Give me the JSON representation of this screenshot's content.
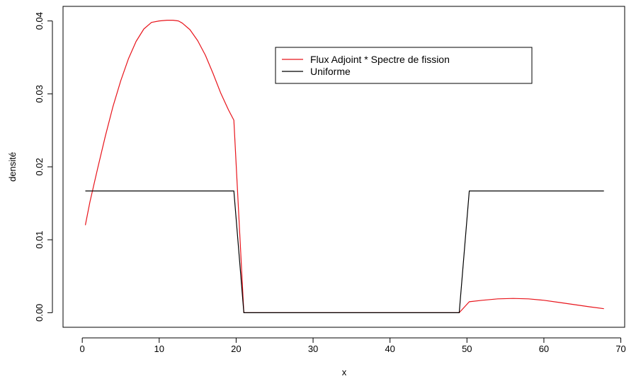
{
  "chart_data": {
    "type": "line",
    "title": "",
    "xlabel": "x",
    "ylabel": "densité",
    "xlim": [
      -2.5,
      70.5
    ],
    "ylim": [
      -0.002,
      0.042
    ],
    "xticks": [
      0,
      10,
      20,
      30,
      40,
      50,
      60,
      70
    ],
    "yticks": [
      0.0,
      0.01,
      0.02,
      0.03,
      0.04
    ],
    "ytick_labels": [
      "0.00",
      "0.01",
      "0.02",
      "0.03",
      "0.04"
    ],
    "legend_position": "top-right",
    "series": [
      {
        "name": "Flux Adjoint * Spectre de fission",
        "color": "#e8141b",
        "x": [
          0.4,
          1,
          2,
          3,
          4,
          5,
          6,
          7,
          8,
          9,
          10,
          11,
          11.8,
          12.5,
          13,
          14,
          15,
          16,
          17,
          18,
          19,
          19.7,
          21.0,
          22,
          30,
          40,
          49.0,
          50.3,
          52,
          54,
          56,
          58,
          60,
          62,
          64,
          66,
          67.8
        ],
        "y": [
          0.012,
          0.0152,
          0.0198,
          0.0242,
          0.0283,
          0.0318,
          0.0348,
          0.0372,
          0.0389,
          0.0398,
          0.04,
          0.0401,
          0.0401,
          0.04,
          0.0397,
          0.0388,
          0.0373,
          0.0353,
          0.0328,
          0.0301,
          0.0278,
          0.0264,
          0.0,
          0.0,
          0.0,
          0.0,
          0.0,
          0.0015,
          0.0017,
          0.0019,
          0.00195,
          0.0019,
          0.0017,
          0.0014,
          0.0011,
          0.0008,
          0.00055
        ]
      },
      {
        "name": "Uniforme",
        "color": "#000000",
        "x": [
          0.4,
          19.7,
          21.0,
          49.0,
          50.3,
          67.8
        ],
        "y": [
          0.0167,
          0.0167,
          0.0,
          0.0,
          0.0167,
          0.0167
        ]
      }
    ]
  }
}
